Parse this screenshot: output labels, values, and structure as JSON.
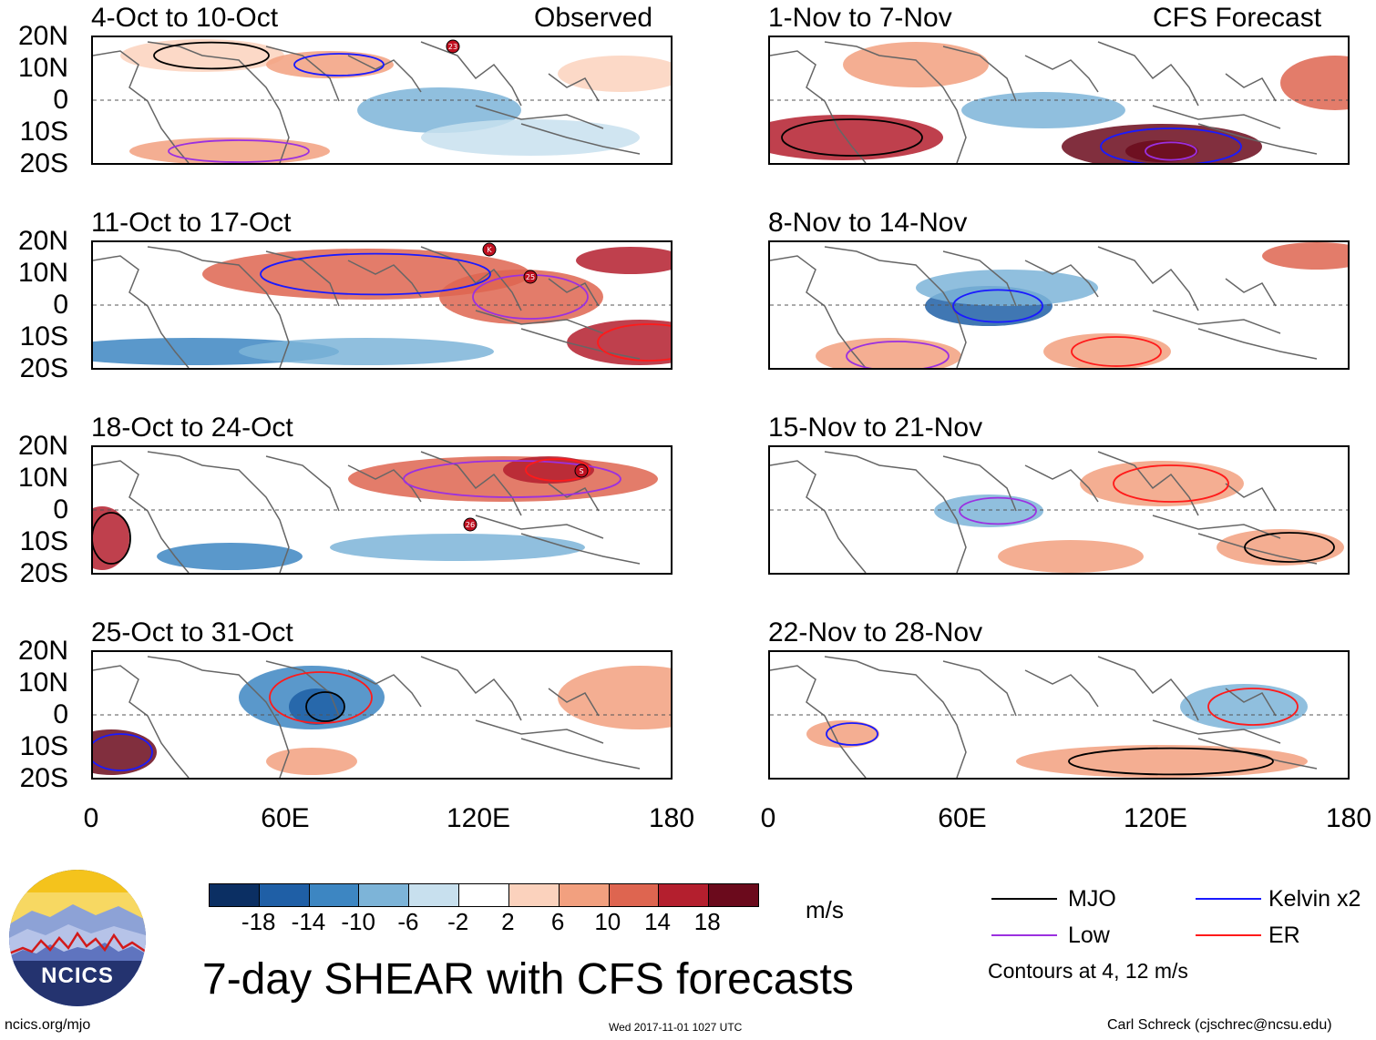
{
  "panels_left": [
    {
      "title": "4-Oct to 10-Oct",
      "tag": "Observed"
    },
    {
      "title": "11-Oct to 17-Oct",
      "tag": ""
    },
    {
      "title": "18-Oct to 24-Oct",
      "tag": ""
    },
    {
      "title": "25-Oct to 31-Oct",
      "tag": ""
    }
  ],
  "panels_right": [
    {
      "title": "1-Nov to 7-Nov",
      "tag": "CFS Forecast"
    },
    {
      "title": "8-Nov to 14-Nov",
      "tag": ""
    },
    {
      "title": "15-Nov to 21-Nov",
      "tag": ""
    },
    {
      "title": "22-Nov to 28-Nov",
      "tag": ""
    }
  ],
  "lat_labels": [
    "20N",
    "10N",
    "0",
    "10S",
    "20S"
  ],
  "lon_labels": [
    "0",
    "60E",
    "120E",
    "180"
  ],
  "colorbar": {
    "ticks": [
      "-18",
      "-14",
      "-10",
      "-6",
      "-2",
      "2",
      "6",
      "10",
      "14",
      "18"
    ],
    "colors": [
      "#0b2f63",
      "#1f5fa6",
      "#3d86c2",
      "#7db4d8",
      "#c8e0ee",
      "#ffffff",
      "#fbd2bd",
      "#f2a07f",
      "#de6550",
      "#b41f2e",
      "#6b0a1c"
    ],
    "units": "m/s"
  },
  "legend": {
    "items": [
      {
        "label": "MJO",
        "color": "#000000"
      },
      {
        "label": "Kelvin x2",
        "color": "#1a1aff"
      },
      {
        "label": "Low",
        "color": "#9b30e0"
      },
      {
        "label": "ER",
        "color": "#ff1a1a"
      }
    ],
    "note": "Contours at 4, 12 m/s"
  },
  "title": "7-day SHEAR with CFS forecasts",
  "logo_text": "NCICS",
  "footer": {
    "url": "ncics.org/mjo",
    "timestamp": "Wed 2017-11-01 1027 UTC",
    "credit": "Carl Schreck (cjschrec@ncsu.edu)"
  },
  "storm_markers": [
    {
      "panel": 0,
      "label": "23"
    },
    {
      "panel": 1,
      "label": "K"
    },
    {
      "panel": 1,
      "label": "25"
    },
    {
      "panel": 2,
      "label": "26"
    },
    {
      "panel": 2,
      "label": "S"
    }
  ]
}
